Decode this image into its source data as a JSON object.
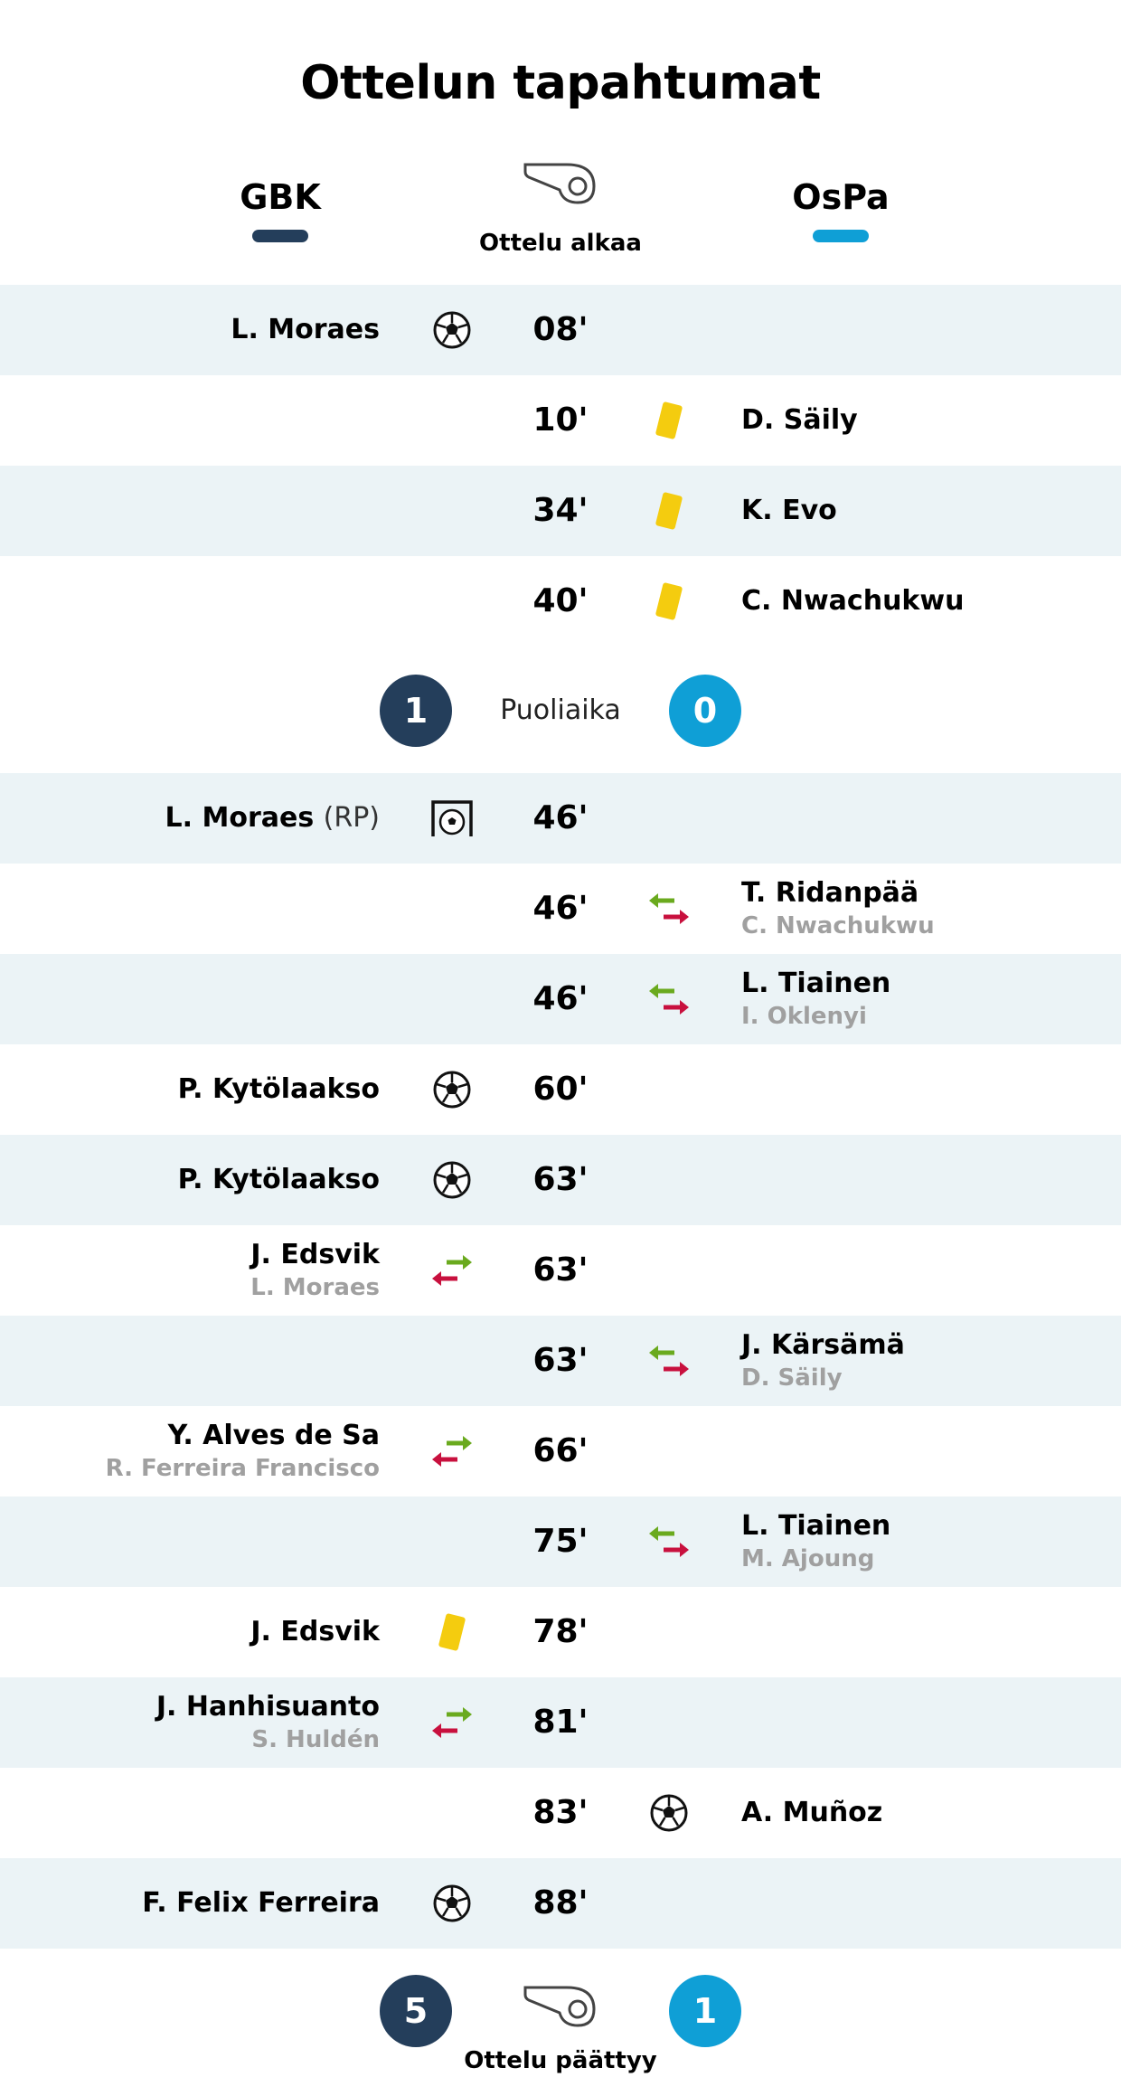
{
  "title": "Ottelun tapahtumat",
  "home_team": {
    "name": "GBK",
    "color": "#243e5b"
  },
  "away_team": {
    "name": "OsPa",
    "color": "#0f9fd6"
  },
  "start_label": "Ottelu alkaa",
  "halftime": {
    "label": "Puoliaika",
    "home_score": "1",
    "away_score": "0"
  },
  "fulltime": {
    "label": "Ottelu päättyy",
    "home_score": "5",
    "away_score": "1"
  },
  "colors": {
    "row_shade": "#ebf3f6",
    "yellow_card": "#f4cc0f",
    "sub_in": "#6aaa1e",
    "sub_out": "#c8103e"
  },
  "first_half": [
    {
      "minute": "08'",
      "side": "home",
      "type": "goal-icon",
      "player": "L. Moraes"
    },
    {
      "minute": "10'",
      "side": "away",
      "type": "yellow-card-icon",
      "player": "D. Säily"
    },
    {
      "minute": "34'",
      "side": "away",
      "type": "yellow-card-icon",
      "player": "K. Evo"
    },
    {
      "minute": "40'",
      "side": "away",
      "type": "yellow-card-icon",
      "player": "C. Nwachukwu"
    }
  ],
  "second_half": [
    {
      "minute": "46'",
      "side": "home",
      "type": "penalty-goal-icon",
      "player": "L. Moraes",
      "note": "(RP)"
    },
    {
      "minute": "46'",
      "side": "away",
      "type": "substitution-icon",
      "player": "T. Ridanpää",
      "sub": "C. Nwachukwu"
    },
    {
      "minute": "46'",
      "side": "away",
      "type": "substitution-icon",
      "player": "L. Tiainen",
      "sub": "I. Oklenyi"
    },
    {
      "minute": "60'",
      "side": "home",
      "type": "goal-icon",
      "player": "P. Kytölaakso"
    },
    {
      "minute": "63'",
      "side": "home",
      "type": "goal-icon",
      "player": "P. Kytölaakso"
    },
    {
      "minute": "63'",
      "side": "home",
      "type": "substitution-icon",
      "player": "J. Edsvik",
      "sub": "L. Moraes"
    },
    {
      "minute": "63'",
      "side": "away",
      "type": "substitution-icon",
      "player": "J. Kärsämä",
      "sub": "D. Säily"
    },
    {
      "minute": "66'",
      "side": "home",
      "type": "substitution-icon",
      "player": "Y. Alves de Sa",
      "sub": "R. Ferreira Francisco"
    },
    {
      "minute": "75'",
      "side": "away",
      "type": "substitution-icon",
      "player": "L. Tiainen",
      "sub": "M. Ajoung"
    },
    {
      "minute": "78'",
      "side": "home",
      "type": "yellow-card-icon",
      "player": "J. Edsvik"
    },
    {
      "minute": "81'",
      "side": "home",
      "type": "substitution-icon",
      "player": "J. Hanhisuanto",
      "sub": "S. Huldén"
    },
    {
      "minute": "83'",
      "side": "away",
      "type": "goal-icon",
      "player": "A. Muñoz"
    },
    {
      "minute": "88'",
      "side": "home",
      "type": "goal-icon",
      "player": "F. Felix Ferreira"
    }
  ]
}
